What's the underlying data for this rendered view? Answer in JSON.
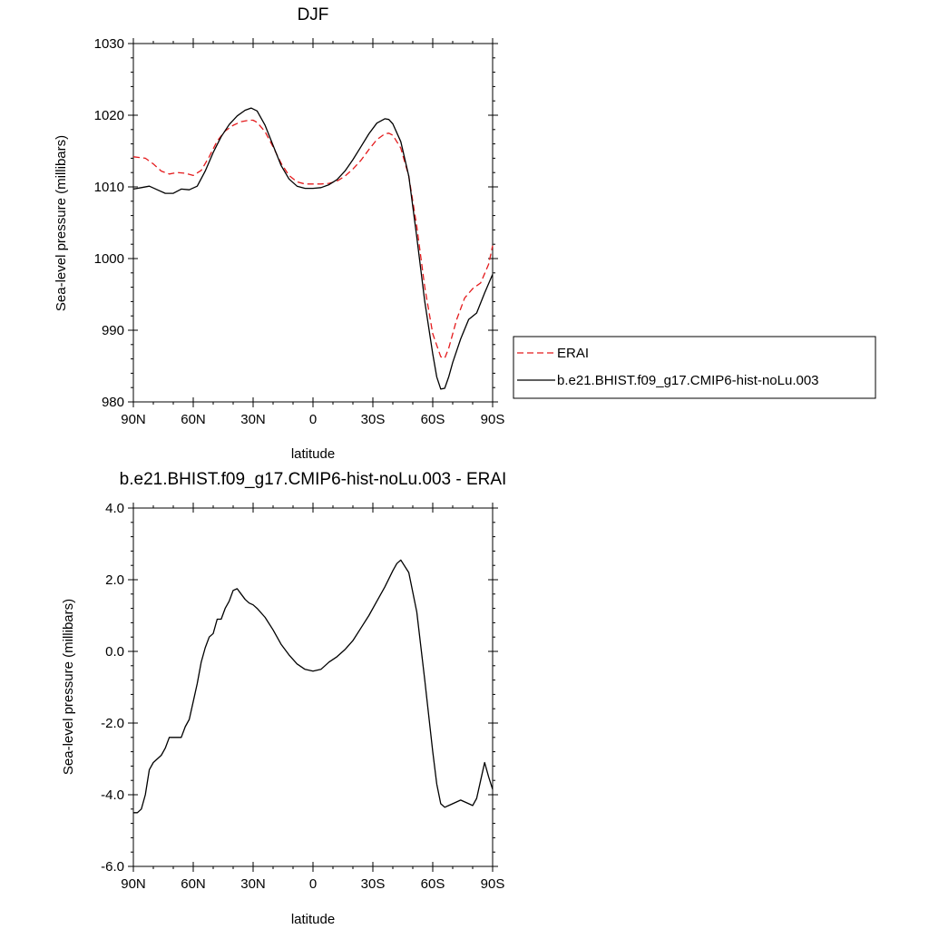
{
  "chart_data": [
    {
      "type": "line",
      "title": "DJF",
      "xlabel": "latitude",
      "ylabel": "Sea-level pressure (millibars)",
      "xlim": [
        90,
        -90
      ],
      "ylim": [
        980,
        1030
      ],
      "x_tick_values": [
        90,
        60,
        30,
        0,
        -30,
        -60,
        -90
      ],
      "x_tick_labels": [
        "90N",
        "60N",
        "30N",
        "0",
        "30S",
        "60S",
        "90S"
      ],
      "y_tick_values": [
        980,
        990,
        1000,
        1010,
        1020,
        1030
      ],
      "y_tick_labels": [
        "980",
        "990",
        "1000",
        "1010",
        "1020",
        "1030"
      ],
      "legend_position": "right",
      "series": [
        {
          "name": "ERAI",
          "color": "#e41a1c",
          "dash": "dashed",
          "x": [
            90,
            84,
            80,
            76,
            72,
            68,
            64,
            60,
            56,
            52,
            48,
            44,
            40,
            36,
            32,
            30,
            28,
            24,
            20,
            16,
            12,
            8,
            4,
            0,
            -4,
            -8,
            -12,
            -16,
            -20,
            -24,
            -28,
            -32,
            -36,
            -38,
            -40,
            -44,
            -48,
            -52,
            -56,
            -60,
            -64,
            -66,
            -68,
            -72,
            -76,
            -80,
            -84,
            -88,
            -90
          ],
          "y": [
            1014.2,
            1014.0,
            1013.2,
            1012.2,
            1011.8,
            1012.0,
            1011.9,
            1011.6,
            1012.3,
            1014.2,
            1016.4,
            1017.8,
            1018.6,
            1019.1,
            1019.3,
            1019.3,
            1019.0,
            1017.7,
            1015.6,
            1013.3,
            1011.6,
            1010.7,
            1010.4,
            1010.4,
            1010.4,
            1010.5,
            1010.8,
            1011.5,
            1012.5,
            1013.7,
            1015.2,
            1016.6,
            1017.4,
            1017.5,
            1017.2,
            1015.4,
            1011.5,
            1004.5,
            996.0,
            989.5,
            986.3,
            986.1,
            987.5,
            991.5,
            994.5,
            995.8,
            996.6,
            999.2,
            1001.8
          ]
        },
        {
          "name": "b.e21.BHIST.f09_g17.CMIP6-hist-noLu.003",
          "color": "#000000",
          "dash": "solid",
          "x": [
            90,
            86,
            82,
            78,
            74,
            70,
            66,
            62,
            58,
            54,
            50,
            46,
            42,
            38,
            34,
            31,
            28,
            24,
            20,
            16,
            12,
            8,
            4,
            0,
            -4,
            -8,
            -12,
            -16,
            -20,
            -24,
            -28,
            -32,
            -36,
            -38,
            -40,
            -44,
            -48,
            -52,
            -56,
            -60,
            -62,
            -64,
            -66,
            -68,
            -70,
            -74,
            -78,
            -82,
            -86,
            -90
          ],
          "y": [
            1009.7,
            1009.9,
            1010.1,
            1009.6,
            1009.1,
            1009.1,
            1009.7,
            1009.6,
            1010.1,
            1012.2,
            1014.8,
            1017.0,
            1018.7,
            1019.9,
            1020.7,
            1021.0,
            1020.6,
            1018.6,
            1015.8,
            1013.0,
            1011.1,
            1010.1,
            1009.8,
            1009.8,
            1009.9,
            1010.3,
            1011.0,
            1012.2,
            1013.8,
            1015.6,
            1017.4,
            1018.9,
            1019.5,
            1019.4,
            1018.8,
            1016.3,
            1011.5,
            1003.0,
            994.0,
            986.7,
            983.5,
            981.8,
            981.9,
            983.5,
            985.5,
            988.8,
            991.5,
            992.4,
            995.2,
            997.8
          ]
        }
      ]
    },
    {
      "type": "line",
      "title": "b.e21.BHIST.f09_g17.CMIP6-hist-noLu.003 - ERAI",
      "xlabel": "latitude",
      "ylabel": "Sea-level pressure (millibars)",
      "xlim": [
        90,
        -90
      ],
      "ylim": [
        -6.0,
        4.0
      ],
      "x_tick_values": [
        90,
        60,
        30,
        0,
        -30,
        -60,
        -90
      ],
      "x_tick_labels": [
        "90N",
        "60N",
        "30N",
        "0",
        "30S",
        "60S",
        "90S"
      ],
      "y_tick_values": [
        -6.0,
        -4.0,
        -2.0,
        0.0,
        2.0,
        4.0
      ],
      "y_tick_labels": [
        "-6.0",
        "-4.0",
        "-2.0",
        "0.0",
        "2.0",
        "4.0"
      ],
      "series": [
        {
          "color": "#000000",
          "dash": "solid",
          "x": [
            90,
            88,
            86,
            84,
            82,
            80,
            78,
            76,
            74,
            72,
            70,
            68,
            66,
            64,
            62,
            60,
            58,
            56,
            54,
            52,
            50,
            48,
            46,
            44,
            42,
            40,
            38,
            36,
            34,
            32,
            30,
            28,
            24,
            20,
            16,
            12,
            8,
            4,
            0,
            -4,
            -8,
            -12,
            -16,
            -20,
            -24,
            -28,
            -32,
            -36,
            -40,
            -42,
            -44,
            -48,
            -52,
            -56,
            -60,
            -62,
            -64,
            -66,
            -68,
            -70,
            -72,
            -74,
            -76,
            -78,
            -80,
            -82,
            -84,
            -86,
            -88,
            -90
          ],
          "y": [
            -4.5,
            -4.5,
            -4.4,
            -4.0,
            -3.3,
            -3.1,
            -3.0,
            -2.9,
            -2.7,
            -2.4,
            -2.4,
            -2.4,
            -2.4,
            -2.1,
            -1.9,
            -1.4,
            -0.9,
            -0.3,
            0.1,
            0.4,
            0.5,
            0.9,
            0.9,
            1.2,
            1.4,
            1.7,
            1.75,
            1.6,
            1.45,
            1.35,
            1.3,
            1.2,
            0.95,
            0.6,
            0.2,
            -0.1,
            -0.35,
            -0.5,
            -0.55,
            -0.5,
            -0.3,
            -0.15,
            0.05,
            0.3,
            0.65,
            1.0,
            1.4,
            1.8,
            2.25,
            2.45,
            2.55,
            2.2,
            1.1,
            -0.8,
            -2.8,
            -3.7,
            -4.25,
            -4.35,
            -4.3,
            -4.25,
            -4.2,
            -4.15,
            -4.2,
            -4.25,
            -4.3,
            -4.1,
            -3.6,
            -3.1,
            -3.5,
            -3.85
          ]
        }
      ]
    }
  ],
  "legend": {
    "items": [
      {
        "label": "ERAI",
        "color": "#e41a1c",
        "dash": "dashed"
      },
      {
        "label": "b.e21.BHIST.f09_g17.CMIP6-hist-noLu.003",
        "color": "#000000",
        "dash": "solid"
      }
    ]
  }
}
